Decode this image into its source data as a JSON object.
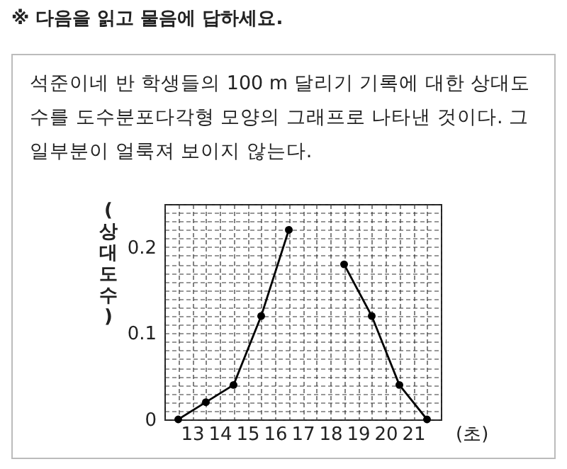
{
  "chart_data": {
    "type": "line",
    "title": "※ 다음을 읽고 물음에 답하세요.",
    "subtitle": "석준이네 반 학생들의 100 m 달리기 기록에 대한 상대도수를 도수분포다각형 모양의 그래프로 나타낸 것이다. 그 일부분이 얼룩져 보이지 않는다.",
    "xlabel": "(초)",
    "ylabel": "(상대도수)",
    "x": [
      12.5,
      13.5,
      14.5,
      15.5,
      16.5,
      17.5,
      18.5,
      19.5,
      20.5,
      21.5
    ],
    "series": [
      {
        "color": "#000000",
        "values": [
          0,
          0.02,
          0.04,
          0.12,
          0.22,
          null,
          0.18,
          0.12,
          0.04,
          0
        ]
      }
    ],
    "xlim": [
      12,
      22
    ],
    "xticks": [
      {
        "value": 12,
        "label": null
      },
      {
        "value": 12.5,
        "label": null
      },
      13,
      {
        "value": 13.5,
        "label": null
      },
      14,
      {
        "value": 14.5,
        "label": null
      },
      15,
      {
        "value": 15.5,
        "label": null
      },
      16,
      {
        "value": 16.5,
        "label": null
      },
      17,
      {
        "value": 17.5,
        "label": null
      },
      18,
      {
        "value": 18.5,
        "label": null
      },
      19,
      {
        "value": 19.5,
        "label": null
      },
      20,
      {
        "value": 20.5,
        "label": null
      },
      21,
      {
        "value": 21.5,
        "label": null
      },
      {
        "value": 22,
        "label": null
      }
    ],
    "ylim": [
      0,
      0.25
    ],
    "yticks": [
      0,
      {
        "value": 0.01,
        "label": null
      },
      {
        "value": 0.02,
        "label": null
      },
      {
        "value": 0.03,
        "label": null
      },
      {
        "value": 0.04,
        "label": null
      },
      {
        "value": 0.05,
        "label": null
      },
      {
        "value": 0.06,
        "label": null
      },
      {
        "value": 0.07,
        "label": null
      },
      {
        "value": 0.08,
        "label": null
      },
      {
        "value": 0.09,
        "label": null
      },
      0.1,
      {
        "value": 0.11,
        "label": null
      },
      {
        "value": 0.12,
        "label": null
      },
      {
        "value": 0.13,
        "label": null
      },
      {
        "value": 0.14,
        "label": null
      },
      {
        "value": 0.15,
        "label": null
      },
      {
        "value": 0.16,
        "label": null
      },
      {
        "value": 0.17,
        "label": null
      },
      {
        "value": 0.18,
        "label": null
      },
      {
        "value": 0.19,
        "label": null
      },
      0.2,
      {
        "value": 0.21,
        "label": null
      },
      {
        "value": 0.22,
        "label": null
      },
      {
        "value": 0.23,
        "label": null
      },
      {
        "value": 0.24,
        "label": null
      },
      {
        "value": 0.25,
        "label": null
      }
    ],
    "grid": true,
    "marker": "circle",
    "line_style": "solid"
  }
}
